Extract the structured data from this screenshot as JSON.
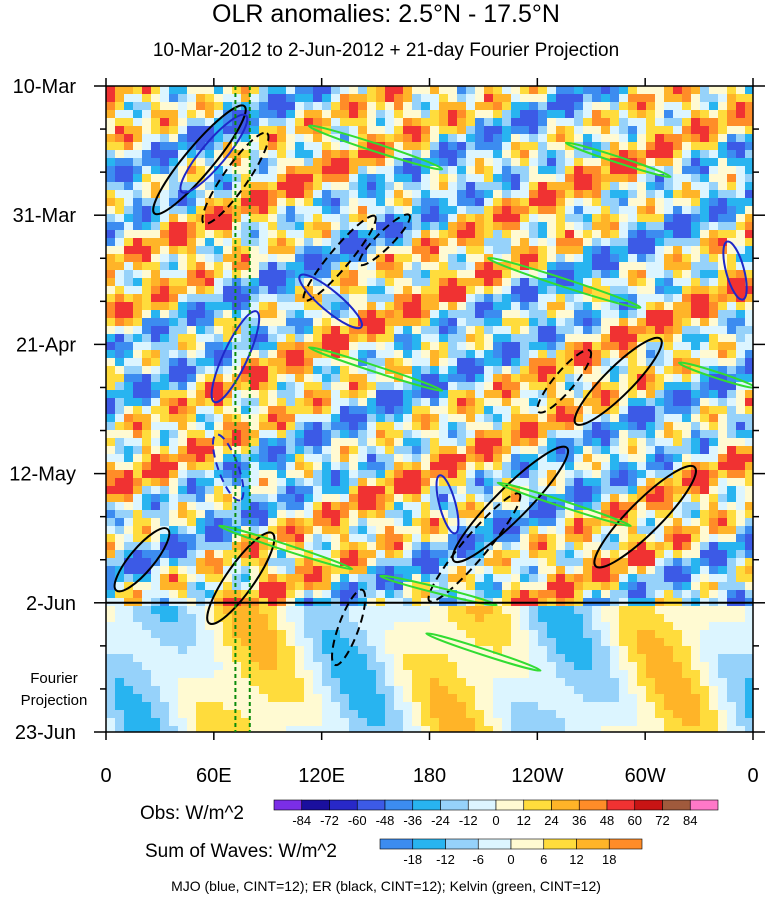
{
  "title": "OLR anomalies: 2.5°N - 17.5°N",
  "subtitle": "10-Mar-2012 to 2-Jun-2012 + 21-day Fourier Projection",
  "chart_data": {
    "type": "heatmap",
    "x_ticks": [
      "0",
      "60E",
      "120E",
      "180",
      "120W",
      "60W",
      "0"
    ],
    "x_tick_degrees": [
      0,
      60,
      120,
      180,
      240,
      300,
      360
    ],
    "y_ticks": [
      "10-Mar",
      "31-Mar",
      "21-Apr",
      "12-May",
      "2-Jun",
      "23-Jun"
    ],
    "y_tick_days": [
      0,
      21,
      42,
      63,
      84,
      105
    ],
    "projection_start_day": 84,
    "projection_label_lines": [
      "Fourier",
      "Projection"
    ],
    "reference_lines_deg": [
      72,
      80
    ],
    "obs_colorbar": {
      "title": "Obs: W/m^2",
      "levels": [
        "-84",
        "-72",
        "-60",
        "-48",
        "-36",
        "-24",
        "-12",
        "0",
        "12",
        "24",
        "36",
        "48",
        "60",
        "72",
        "84"
      ],
      "colors": [
        "#7b2ee6",
        "#1a0f9e",
        "#2828c8",
        "#3c5ae6",
        "#3c8cf0",
        "#28b4f0",
        "#96d2fa",
        "#dcf5ff",
        "#fffad2",
        "#ffdc3c",
        "#ffb428",
        "#ff8c28",
        "#f03232",
        "#c81414",
        "#a05a3c",
        "#ff78c8"
      ]
    },
    "sum_colorbar": {
      "title": "Sum of Waves: W/m^2",
      "levels": [
        "-18",
        "-12",
        "-6",
        "0",
        "6",
        "12",
        "18"
      ],
      "colors": [
        "#3c8cf0",
        "#28b4f0",
        "#96d2fa",
        "#dcf5ff",
        "#fffad2",
        "#ffdc3c",
        "#ffb428",
        "#ff8c28"
      ]
    },
    "legend": "MJO (blue, CINT=12); ER (black, CINT=12); Kelvin (green, CINT=12)",
    "series_colors": {
      "MJO": "#1e28c8",
      "ER": "#000000",
      "Kelvin": "#32dc32"
    }
  }
}
